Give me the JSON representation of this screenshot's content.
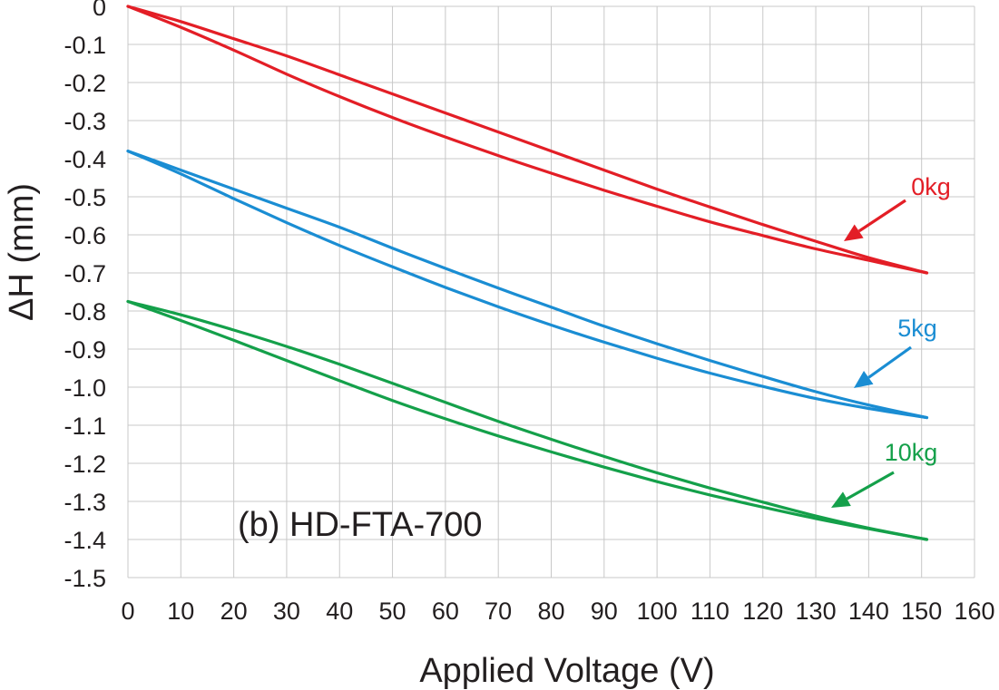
{
  "chart_data": {
    "type": "line",
    "xlabel": "Applied Voltage (V)",
    "ylabel": "ΔH (mm)",
    "xlim": [
      0,
      160
    ],
    "ylim": [
      -1.5,
      0
    ],
    "x_ticks": [
      "0",
      "10",
      "20",
      "30",
      "40",
      "50",
      "60",
      "70",
      "80",
      "90",
      "100",
      "110",
      "120",
      "130",
      "140",
      "150",
      "160"
    ],
    "y_ticks": [
      "0",
      "-0.1",
      "-0.2",
      "-0.3",
      "-0.4",
      "-0.5",
      "-0.6",
      "-0.7",
      "-0.8",
      "-0.9",
      "-1.0",
      "-1.1",
      "-1.2",
      "-1.3",
      "-1.4",
      "-1.5"
    ],
    "grid": true,
    "annotation": "(b) HD-FTA-700",
    "series": [
      {
        "name": "0kg",
        "color": "#e31e26",
        "loading": {
          "x": [
            0,
            10,
            20,
            30,
            40,
            50,
            60,
            70,
            80,
            90,
            100,
            110,
            120,
            130,
            140,
            151
          ],
          "y": [
            0,
            -0.055,
            -0.115,
            -0.178,
            -0.237,
            -0.292,
            -0.343,
            -0.392,
            -0.438,
            -0.483,
            -0.525,
            -0.566,
            -0.602,
            -0.637,
            -0.667,
            -0.7
          ]
        },
        "unloading": {
          "x": [
            0,
            10,
            20,
            30,
            40,
            50,
            60,
            70,
            80,
            90,
            100,
            110,
            120,
            130,
            140,
            151
          ],
          "y": [
            0,
            -0.04,
            -0.085,
            -0.13,
            -0.18,
            -0.23,
            -0.28,
            -0.33,
            -0.38,
            -0.43,
            -0.48,
            -0.527,
            -0.573,
            -0.617,
            -0.66,
            -0.7
          ]
        }
      },
      {
        "name": "5kg",
        "color": "#1a8dd3",
        "loading": {
          "x": [
            0,
            10,
            20,
            30,
            40,
            50,
            60,
            70,
            80,
            90,
            100,
            110,
            120,
            130,
            140,
            151
          ],
          "y": [
            -0.38,
            -0.44,
            -0.505,
            -0.568,
            -0.628,
            -0.684,
            -0.738,
            -0.789,
            -0.837,
            -0.882,
            -0.924,
            -0.963,
            -0.998,
            -1.03,
            -1.056,
            -1.08
          ]
        },
        "unloading": {
          "x": [
            0,
            10,
            20,
            30,
            40,
            50,
            60,
            70,
            80,
            90,
            100,
            110,
            120,
            130,
            140,
            151
          ],
          "y": [
            -0.38,
            -0.43,
            -0.48,
            -0.53,
            -0.58,
            -0.635,
            -0.688,
            -0.74,
            -0.79,
            -0.84,
            -0.886,
            -0.93,
            -0.972,
            -1.012,
            -1.047,
            -1.08
          ]
        }
      },
      {
        "name": "10kg",
        "color": "#14a04a",
        "loading": {
          "x": [
            0,
            10,
            20,
            30,
            40,
            50,
            60,
            70,
            80,
            90,
            100,
            110,
            120,
            130,
            140,
            151
          ],
          "y": [
            -0.775,
            -0.825,
            -0.877,
            -0.93,
            -0.983,
            -1.035,
            -1.083,
            -1.128,
            -1.17,
            -1.21,
            -1.248,
            -1.283,
            -1.315,
            -1.345,
            -1.372,
            -1.4
          ]
        },
        "unloading": {
          "x": [
            0,
            10,
            20,
            30,
            40,
            50,
            60,
            70,
            80,
            90,
            100,
            110,
            120,
            130,
            140,
            151
          ],
          "y": [
            -0.775,
            -0.81,
            -0.85,
            -0.893,
            -0.94,
            -0.99,
            -1.04,
            -1.09,
            -1.137,
            -1.182,
            -1.225,
            -1.265,
            -1.302,
            -1.338,
            -1.37,
            -1.4
          ]
        }
      }
    ]
  }
}
